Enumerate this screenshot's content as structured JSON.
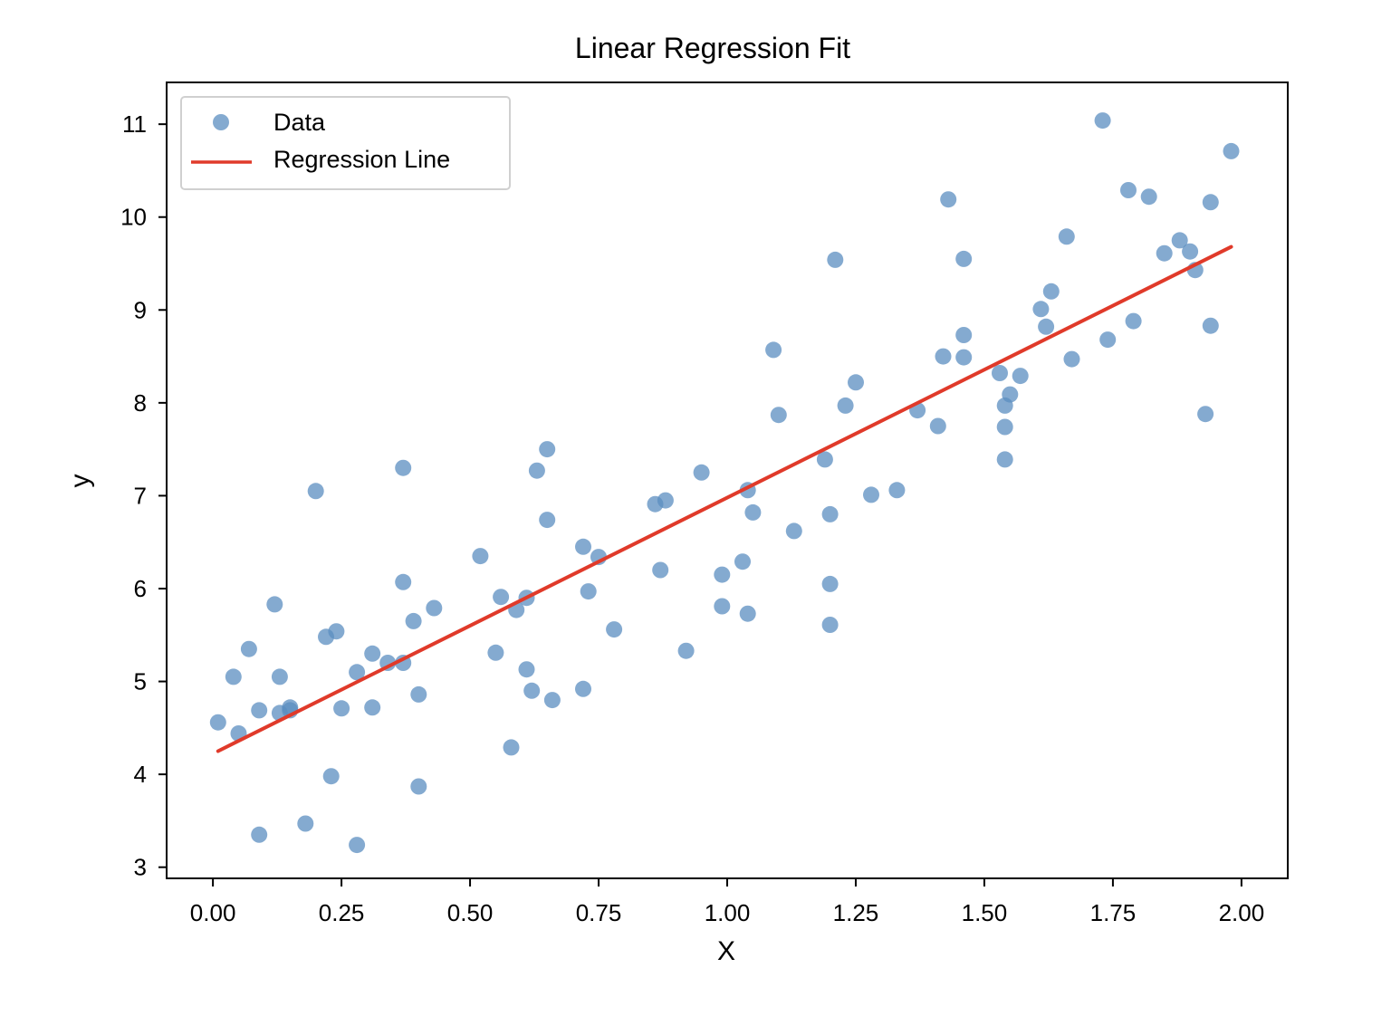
{
  "chart_data": {
    "type": "scatter",
    "title": "Linear Regression Fit",
    "xlabel": "X",
    "ylabel": "y",
    "xlim": [
      -0.09,
      2.09
    ],
    "ylim": [
      2.88,
      11.45
    ],
    "xticks": [
      "0.00",
      "0.25",
      "0.50",
      "0.75",
      "1.00",
      "1.25",
      "1.50",
      "1.75",
      "2.00"
    ],
    "xtick_values": [
      0,
      0.25,
      0.5,
      0.75,
      1.0,
      1.25,
      1.5,
      1.75,
      2.0
    ],
    "yticks": [
      "3",
      "4",
      "5",
      "6",
      "7",
      "8",
      "9",
      "10",
      "11"
    ],
    "ytick_values": [
      3,
      4,
      5,
      6,
      7,
      8,
      9,
      10,
      11
    ],
    "legend_position": "top-left",
    "grid": false,
    "series": [
      {
        "name": "Data",
        "kind": "scatter",
        "color": "#5b8ec0",
        "x": [
          0.01,
          0.04,
          0.05,
          0.07,
          0.09,
          0.09,
          0.12,
          0.13,
          0.13,
          0.15,
          0.15,
          0.18,
          0.2,
          0.22,
          0.23,
          0.24,
          0.25,
          0.28,
          0.28,
          0.31,
          0.31,
          0.34,
          0.37,
          0.37,
          0.37,
          0.39,
          0.4,
          0.4,
          0.43,
          0.52,
          0.55,
          0.56,
          0.58,
          0.59,
          0.61,
          0.61,
          0.62,
          0.63,
          0.65,
          0.65,
          0.66,
          0.72,
          0.72,
          0.73,
          0.75,
          0.78,
          0.86,
          0.87,
          0.88,
          0.92,
          0.95,
          0.99,
          0.99,
          1.03,
          1.04,
          1.04,
          1.05,
          1.09,
          1.1,
          1.13,
          1.19,
          1.2,
          1.2,
          1.2,
          1.21,
          1.23,
          1.25,
          1.28,
          1.33,
          1.37,
          1.41,
          1.42,
          1.43,
          1.46,
          1.46,
          1.46,
          1.53,
          1.54,
          1.54,
          1.54,
          1.55,
          1.57,
          1.61,
          1.62,
          1.63,
          1.66,
          1.67,
          1.73,
          1.74,
          1.78,
          1.79,
          1.82,
          1.85,
          1.88,
          1.9,
          1.91,
          1.93,
          1.94,
          1.94,
          1.98
        ],
        "y": [
          4.56,
          5.05,
          4.44,
          5.35,
          4.69,
          3.35,
          5.83,
          5.05,
          4.66,
          4.69,
          4.72,
          3.47,
          7.05,
          5.48,
          3.98,
          5.54,
          4.71,
          5.1,
          3.24,
          5.3,
          4.72,
          5.2,
          5.2,
          6.07,
          7.3,
          5.65,
          4.86,
          3.87,
          5.79,
          6.35,
          5.31,
          5.91,
          4.29,
          5.77,
          5.13,
          5.9,
          4.9,
          7.27,
          7.5,
          6.74,
          4.8,
          6.45,
          4.92,
          5.97,
          6.34,
          5.56,
          6.91,
          6.2,
          6.95,
          5.33,
          7.25,
          6.15,
          5.81,
          6.29,
          5.73,
          7.06,
          6.82,
          8.57,
          7.87,
          6.62,
          7.39,
          6.05,
          6.8,
          5.61,
          9.54,
          7.97,
          8.22,
          7.01,
          7.06,
          7.92,
          7.75,
          8.5,
          10.19,
          8.73,
          8.49,
          9.55,
          8.32,
          7.97,
          7.74,
          7.39,
          8.09,
          8.29,
          9.01,
          8.82,
          9.2,
          9.79,
          8.47,
          11.04,
          8.68,
          10.29,
          8.88,
          10.22,
          9.61,
          9.75,
          9.63,
          9.43,
          7.88,
          8.83,
          10.16,
          10.71
        ]
      },
      {
        "name": "Regression Line",
        "kind": "line",
        "color": "#e03a2a",
        "x": [
          0.01,
          1.98
        ],
        "y": [
          4.25,
          9.68
        ]
      }
    ]
  }
}
